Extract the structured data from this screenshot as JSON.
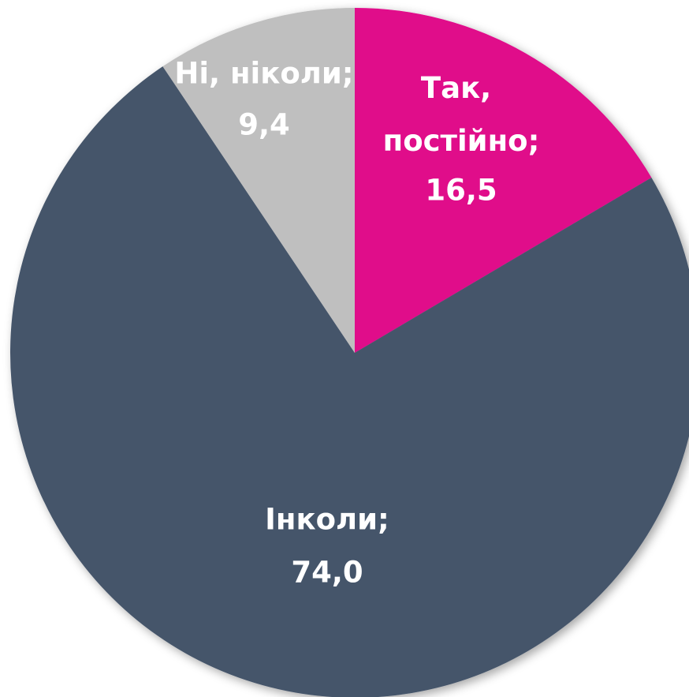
{
  "chart_data": {
    "type": "pie",
    "categories": [
      "Так, постійно;",
      "Інколи;",
      "Ні, ніколи;"
    ],
    "values": [
      16.5,
      74.0,
      9.4
    ],
    "value_labels": [
      "16,5",
      "74,0",
      "9,4"
    ],
    "colors": [
      "#e0078a",
      "#44546a",
      "#bfbfbf"
    ]
  }
}
